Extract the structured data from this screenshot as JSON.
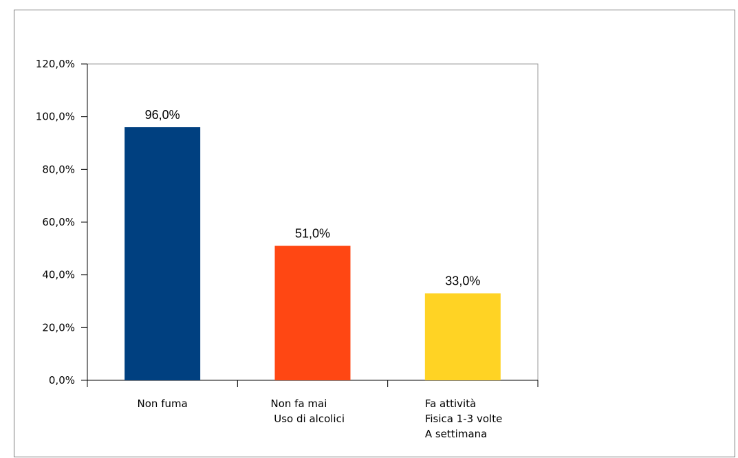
{
  "chart_data": {
    "type": "bar",
    "categories": [
      [
        "Non fuma"
      ],
      [
        "Non fa mai",
        " Uso di alcolici"
      ],
      [
        "Fa attività",
        "Fisica 1-3 volte",
        "A settimana"
      ]
    ],
    "values": [
      96.0,
      51.0,
      33.0
    ],
    "data_labels": [
      "96,0%",
      "51,0%",
      "33,0%"
    ],
    "colors": [
      "#004080",
      "#ff4713",
      "#ffd324"
    ],
    "ylim": [
      0,
      120
    ],
    "yticks": [
      0,
      20,
      40,
      60,
      80,
      100,
      120
    ],
    "ytick_labels": [
      "0,0%",
      "20,0%",
      "40,0%",
      "60,0%",
      "80,0%",
      "100,0%",
      "120,0%"
    ],
    "grid": false,
    "title": "",
    "xlabel": "",
    "ylabel": ""
  }
}
